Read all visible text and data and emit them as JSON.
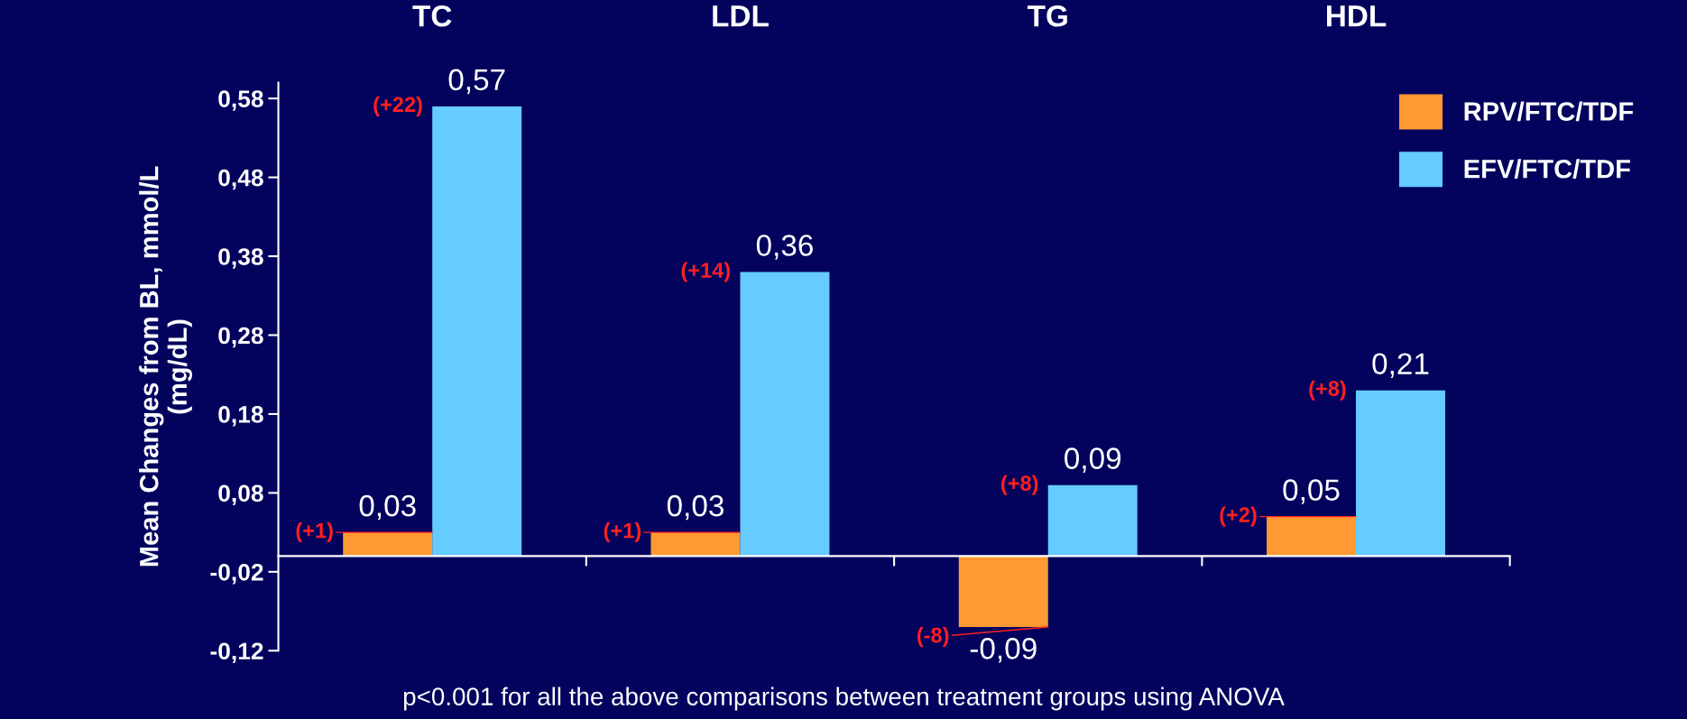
{
  "chart_data": {
    "type": "bar",
    "categories": [
      "TC",
      "LDL",
      "TG",
      "HDL"
    ],
    "ylabel": "Mean Changes from BL, mmol/L\n(mg/dL)",
    "series": [
      {
        "name": "RPV/FTC/TDF",
        "color": "#ff9933",
        "values": [
          0.03,
          0.03,
          -0.09,
          0.05
        ],
        "value_labels": [
          "0,03",
          "0,03",
          "-0,09",
          "0,05"
        ]
      },
      {
        "name": "EFV/FTC/TDF",
        "color": "#66ccff",
        "values": [
          0.57,
          0.36,
          0.09,
          0.21
        ],
        "value_labels": [
          "0,57",
          "0,36",
          "0,09",
          "0,21"
        ]
      }
    ],
    "ylim": [
      -0.12,
      0.6
    ],
    "yticks": [
      {
        "value": -0.12,
        "label": "-0,12"
      },
      {
        "value": -0.02,
        "label": "-0,02"
      },
      {
        "value": 0.08,
        "label": "0,08"
      },
      {
        "value": 0.18,
        "label": "0,18"
      },
      {
        "value": 0.28,
        "label": "0,28"
      },
      {
        "value": 0.38,
        "label": "0,38"
      },
      {
        "value": 0.48,
        "label": "0,48"
      },
      {
        "value": 0.58,
        "label": "0,58"
      }
    ],
    "legend": "top right",
    "grid": false,
    "annotations": [
      {
        "text": "(+1)",
        "x": "TC",
        "y": 0.03
      },
      {
        "text": "(+22)",
        "x": "TC",
        "y": 0.57
      },
      {
        "text": "(+1)",
        "x": "LDL",
        "y": 0.03
      },
      {
        "text": "(+14)",
        "x": "LDL",
        "y": 0.36
      },
      {
        "text": "(-8)",
        "x": "TG",
        "y": -0.09
      },
      {
        "text": "(+8)",
        "x": "TG",
        "y": 0.09
      },
      {
        "text": "(+2)",
        "x": "HDL",
        "y": 0.05
      },
      {
        "text": "(+8)",
        "x": "HDL",
        "y": 0.21
      },
      "p<0.001 for all the above comparisons between treatment groups using ANOVA"
    ]
  }
}
